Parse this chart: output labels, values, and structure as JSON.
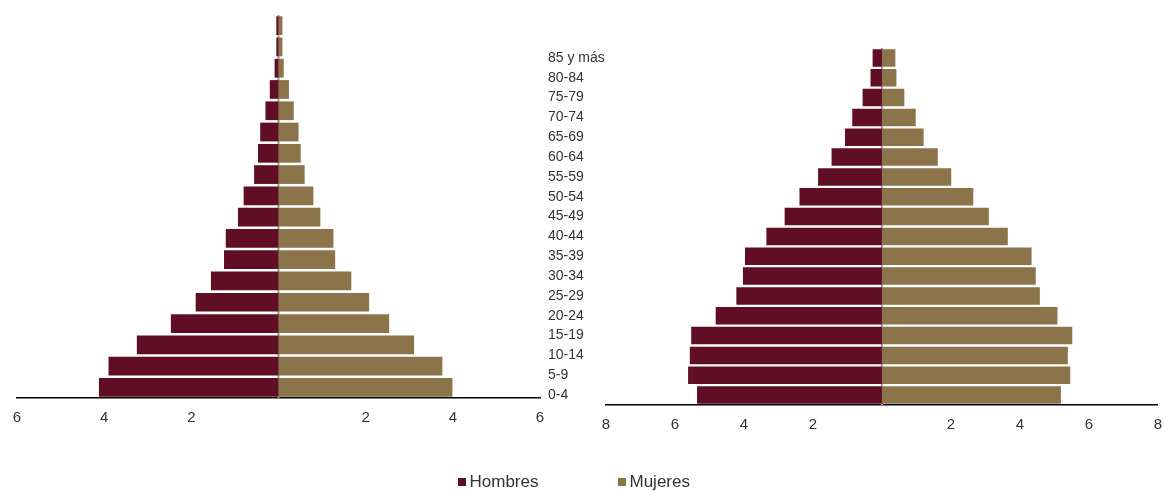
{
  "chart_data": [
    {
      "type": "bar",
      "orientation": "horizontal",
      "stacked": true,
      "legend": "bottom",
      "tick_labels": "x",
      "categories": [
        null,
        null,
        null,
        null,
        null,
        null,
        null,
        null,
        null,
        null,
        null,
        null,
        null,
        null,
        null,
        null,
        null,
        null
      ],
      "series": [
        {
          "name": "Hombres",
          "color": "#600e26",
          "values": [
            -0.05,
            -0.05,
            -0.09,
            -0.2,
            -0.3,
            -0.42,
            -0.47,
            -0.56,
            -0.8,
            -0.93,
            -1.21,
            -1.25,
            -1.55,
            -1.9,
            -2.47,
            -3.25,
            -3.9,
            -4.12
          ]
        },
        {
          "name": "Mujeres",
          "color": "#8b744a",
          "values": [
            0.09,
            0.09,
            0.12,
            0.24,
            0.35,
            0.46,
            0.51,
            0.6,
            0.8,
            0.96,
            1.26,
            1.3,
            1.67,
            2.08,
            2.54,
            3.11,
            3.76,
            3.99
          ]
        }
      ],
      "xlim": [
        -6,
        6
      ],
      "xticks": [
        {
          "value": -6,
          "label": "6"
        },
        {
          "value": -4,
          "label": "4"
        },
        {
          "value": -2,
          "label": "2"
        },
        {
          "value": 0,
          "label": null
        },
        2,
        4,
        6
      ],
      "ref_lines": [
        {
          "axis": "x",
          "value": 0,
          "color": "#999999"
        }
      ]
    },
    {
      "type": "bar",
      "orientation": "horizontal",
      "stacked": true,
      "categories": [
        "85 y más",
        "80-84",
        "75-79",
        "70-74",
        "65-69",
        "60-64",
        "55-59",
        "50-54",
        "45-49",
        "40-44",
        "35-39",
        "30-34",
        "25-29",
        "20-24",
        "15-19",
        "10-14",
        "5-9",
        "0-4"
      ],
      "series": [
        {
          "color": "#600e26",
          "values": [
            -0.27,
            -0.33,
            -0.56,
            -0.86,
            -1.07,
            -1.46,
            -1.85,
            -2.39,
            -2.82,
            -3.35,
            -3.97,
            -4.03,
            -4.22,
            -4.82,
            -5.53,
            -5.57,
            -5.62,
            -5.36
          ]
        },
        {
          "color": "#8b744a",
          "values": [
            0.39,
            0.42,
            0.65,
            0.98,
            1.21,
            1.62,
            2.01,
            2.65,
            3.1,
            3.65,
            4.34,
            4.46,
            4.58,
            5.09,
            5.52,
            5.39,
            5.46,
            5.19
          ]
        }
      ],
      "xlim": [
        -8,
        8
      ],
      "xticks": [
        {
          "value": -8,
          "label": "8"
        },
        {
          "value": -6,
          "label": "6"
        },
        {
          "value": -4,
          "label": "4"
        },
        {
          "value": -2,
          "label": "2"
        },
        {
          "value": 0,
          "label": null
        },
        2,
        4,
        6,
        8
      ],
      "ref_lines": [
        {
          "axis": "x",
          "value": 0,
          "color": "#999999"
        }
      ]
    }
  ]
}
